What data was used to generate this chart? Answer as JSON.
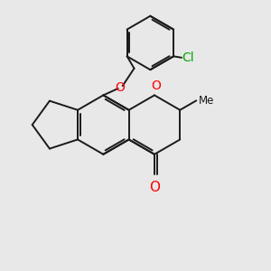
{
  "background_color": "#e8e8e8",
  "bond_color": "#1a1a1a",
  "oxygen_color": "#ff0000",
  "chlorine_color": "#00aa00",
  "lw": 1.4,
  "figsize": [
    3.0,
    3.0
  ],
  "dpi": 100,
  "xlim": [
    0,
    10
  ],
  "ylim": [
    0,
    10
  ]
}
